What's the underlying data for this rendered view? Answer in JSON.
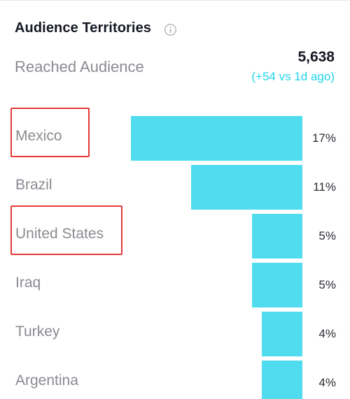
{
  "header": {
    "title": "Audience Territories",
    "info_icon": "info-circle-icon"
  },
  "summary": {
    "label": "Reached Audience",
    "value": "5,638",
    "delta": "(+54 vs 1d ago)"
  },
  "colors": {
    "bar": "#50dcee",
    "delta_text": "#20d5ec",
    "highlight": "#e53935"
  },
  "chart_data": {
    "type": "bar",
    "categories": [
      "Mexico",
      "Brazil",
      "United States",
      "Iraq",
      "Turkey",
      "Argentina"
    ],
    "values": [
      17,
      11,
      5,
      5,
      4,
      4
    ],
    "value_labels": [
      "17%",
      "11%",
      "5%",
      "5%",
      "4%",
      "4%"
    ],
    "orientation": "horizontal",
    "highlighted": [
      "Mexico",
      "United States"
    ]
  }
}
